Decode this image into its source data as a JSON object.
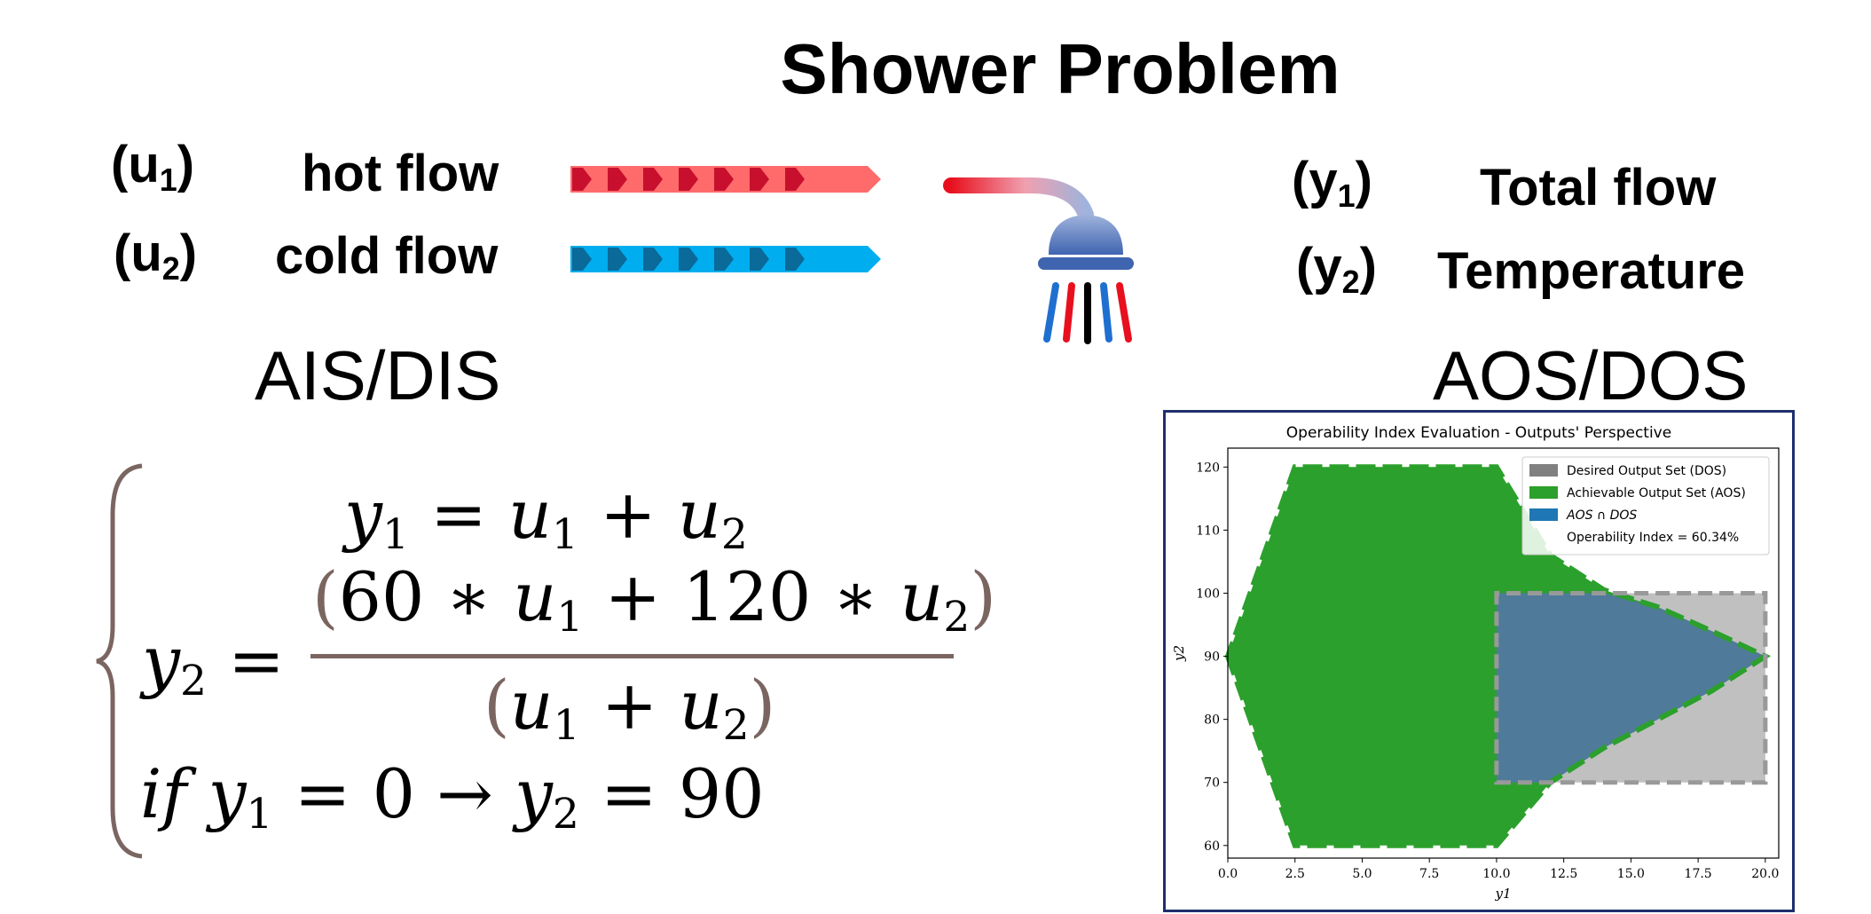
{
  "title": "Shower Problem",
  "inputs": [
    {
      "var": "u",
      "sub": "1",
      "label": "hot flow"
    },
    {
      "var": "u",
      "sub": "2",
      "label": "cold flow"
    }
  ],
  "outputs": [
    {
      "var": "y",
      "sub": "1",
      "label": "Total flow"
    },
    {
      "var": "y",
      "sub": "2",
      "label": "Temperature"
    }
  ],
  "input_set_label": "AIS/DIS",
  "output_set_label": "AOS/DOS",
  "equations": {
    "eq1": {
      "lhs_var": "y",
      "lhs_sub": "1",
      "eq": "=",
      "t1_var": "u",
      "t1_sub": "1",
      "plus": "+",
      "t2_var": "u",
      "t2_sub": "2"
    },
    "eq2": {
      "lhs_var": "y",
      "lhs_sub": "2",
      "eq": "=",
      "num_open": "(",
      "num_a": "60",
      "num_times1": "∗",
      "num_v1": "u",
      "num_s1": "1",
      "num_plus": "+",
      "num_b": "120",
      "num_times2": "∗",
      "num_v2": "u",
      "num_s2": "2",
      "num_close": ")",
      "den_open": "(",
      "den_v1": "u",
      "den_s1": "1",
      "den_plus": "+",
      "den_v2": "u",
      "den_s2": "2",
      "den_close": ")"
    },
    "eq3": {
      "if": "if",
      "v1": "y",
      "s1": "1",
      "eq1": "=",
      "zero": "0",
      "arrow": "→",
      "v2": "y",
      "s2": "2",
      "eq2": "=",
      "val": "90"
    }
  },
  "colors": {
    "hot": "#ff6b6b",
    "hot_chevron": "#c8102e",
    "cold": "#00aeef",
    "cold_chevron": "#0a6a9a",
    "frame": "#1f2f6e",
    "dos": "#808080",
    "aos": "#2ca02c",
    "intersect": "#1f77b4",
    "brace": "#7a6560"
  },
  "icons": {
    "shower": "shower-icon"
  },
  "chart_data": {
    "type": "area",
    "title": "Operability Index Evaluation - Outputs' Perspective",
    "xlabel": "y1",
    "ylabel": "y2",
    "xlim": [
      0,
      20.5
    ],
    "ylim": [
      58,
      123
    ],
    "xticks": [
      "0.0",
      "2.5",
      "5.0",
      "7.5",
      "10.0",
      "12.5",
      "15.0",
      "17.5",
      "20.0"
    ],
    "yticks": [
      "60",
      "70",
      "80",
      "90",
      "100",
      "110",
      "120"
    ],
    "legend_position": "top-right",
    "legend": [
      {
        "label": "Desired Output Set (DOS)",
        "color": "#808080"
      },
      {
        "label": "Achievable Output Set (AOS)",
        "color": "#2ca02c"
      },
      {
        "label": "AOS ∩ DOS",
        "color": "#1f77b4"
      },
      {
        "label": "Operability Index = 60.34%",
        "color": ""
      }
    ],
    "series": [
      {
        "name": "Desired Output Set (DOS)",
        "polygon": [
          [
            10,
            70
          ],
          [
            20,
            70
          ],
          [
            20,
            100
          ],
          [
            10,
            100
          ]
        ]
      },
      {
        "name": "Achievable Output Set (AOS)",
        "polygon": [
          [
            0,
            90
          ],
          [
            2.5,
            60
          ],
          [
            10,
            60
          ],
          [
            12,
            70
          ],
          [
            14,
            75.5
          ],
          [
            16,
            80
          ],
          [
            18,
            84.5
          ],
          [
            20,
            90
          ],
          [
            18,
            94
          ],
          [
            16,
            97.8
          ],
          [
            14,
            100.5
          ],
          [
            12,
            106
          ],
          [
            10,
            120
          ],
          [
            2.5,
            120
          ]
        ]
      },
      {
        "name": "AOS ∩ DOS",
        "polygon": [
          [
            10,
            70
          ],
          [
            12,
            70
          ],
          [
            14,
            75.5
          ],
          [
            16,
            80
          ],
          [
            18,
            84.5
          ],
          [
            20,
            90
          ],
          [
            18,
            94
          ],
          [
            16,
            97.8
          ],
          [
            14,
            100
          ],
          [
            10,
            100
          ]
        ]
      }
    ],
    "operability_index": 60.34
  }
}
